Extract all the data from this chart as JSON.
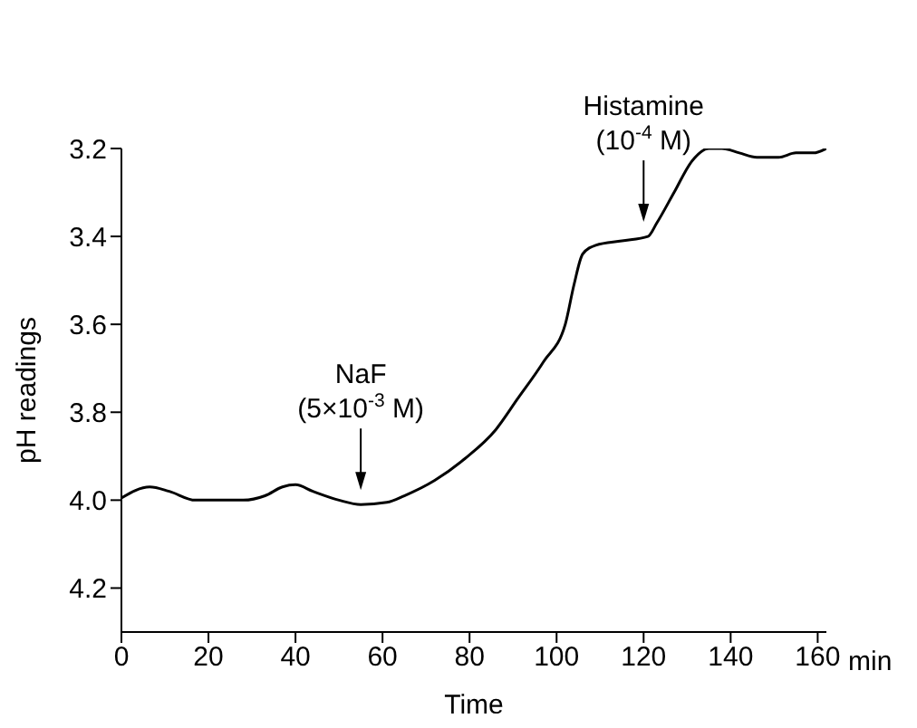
{
  "chart_data": {
    "type": "line",
    "xlabel": "Time",
    "ylabel": "pH readings",
    "x": [
      0,
      6.5,
      11,
      17,
      22,
      28,
      33,
      37,
      40,
      44,
      50,
      55,
      61,
      65,
      72,
      79,
      86,
      91,
      97,
      102,
      104,
      106,
      109,
      115,
      121,
      123,
      127,
      131,
      135,
      138,
      142,
      146,
      151,
      155,
      159,
      162
    ],
    "series": [
      {
        "color": "#000000",
        "values": [
          3.995,
          3.97,
          3.98,
          4.0,
          4.0,
          4.0,
          3.99,
          3.97,
          3.965,
          3.98,
          4.0,
          4.01,
          4.005,
          3.99,
          3.955,
          3.905,
          3.84,
          3.77,
          3.685,
          3.6,
          3.51,
          3.44,
          3.42,
          3.41,
          3.4,
          3.37,
          3.3,
          3.23,
          3.2,
          3.2,
          3.21,
          3.22,
          3.22,
          3.21,
          3.21,
          3.2
        ]
      }
    ],
    "xlim": [
      0,
      162
    ],
    "xticks": [
      0,
      20,
      40,
      60,
      80,
      100,
      120,
      140,
      160
    ],
    "ylim": [
      4.3,
      3.2
    ],
    "yticks": [
      3.2,
      3.4,
      3.6,
      3.8,
      {
        "value": 4,
        "label": "4.0"
      },
      4.2
    ],
    "grid": false,
    "legend": false,
    "marker": "none",
    "line_style": "solid",
    "annotations": [
      {
        "text": "NaF\n(5×10$^{-3}$ M)",
        "x": 55,
        "y": 4.01
      },
      {
        "text": "Histamine\n(10$^{-4}$ M)",
        "x": 120,
        "y": 3.4
      },
      "min"
    ]
  }
}
